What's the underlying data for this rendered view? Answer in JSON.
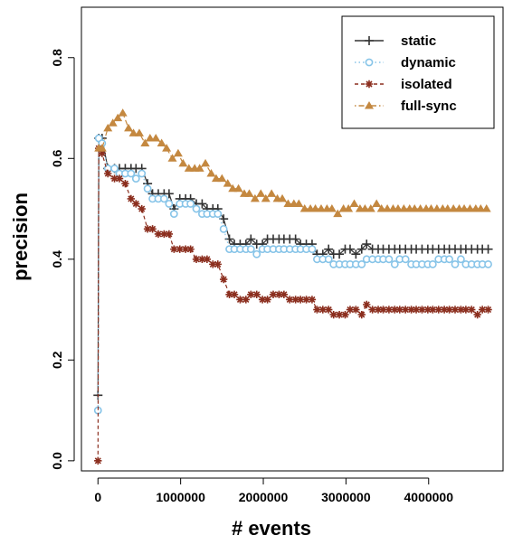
{
  "chart_data": {
    "type": "line",
    "xlabel": "# events",
    "ylabel": "precision",
    "xlim": [
      -200000,
      4900000
    ],
    "ylim": [
      -0.02,
      0.9
    ],
    "x_ticks": [
      0,
      1000000,
      2000000,
      3000000,
      4000000
    ],
    "x_tick_labels": [
      "0",
      "1000000",
      "2000000",
      "3000000",
      "4000000"
    ],
    "y_ticks": [
      0.0,
      0.2,
      0.4,
      0.6,
      0.8
    ],
    "y_tick_labels": [
      "0.0",
      "0.2",
      "0.4",
      "0.6",
      "0.8"
    ],
    "grid": false,
    "legend_position": "top-right",
    "series": [
      {
        "name": "static",
        "color": "#333333",
        "marker": "plus",
        "line_style": "solid",
        "points": [
          [
            0,
            0.13
          ],
          [
            10000,
            0.64
          ],
          [
            50000,
            0.64
          ],
          [
            120000,
            0.58
          ],
          [
            200000,
            0.58
          ],
          [
            260000,
            0.58
          ],
          [
            330000,
            0.58
          ],
          [
            400000,
            0.58
          ],
          [
            460000,
            0.58
          ],
          [
            530000,
            0.58
          ],
          [
            600000,
            0.55
          ],
          [
            660000,
            0.53
          ],
          [
            730000,
            0.53
          ],
          [
            800000,
            0.53
          ],
          [
            860000,
            0.53
          ],
          [
            920000,
            0.5
          ],
          [
            990000,
            0.52
          ],
          [
            1060000,
            0.52
          ],
          [
            1120000,
            0.52
          ],
          [
            1190000,
            0.51
          ],
          [
            1260000,
            0.51
          ],
          [
            1320000,
            0.5
          ],
          [
            1390000,
            0.5
          ],
          [
            1450000,
            0.5
          ],
          [
            1520000,
            0.48
          ],
          [
            1590000,
            0.44
          ],
          [
            1650000,
            0.43
          ],
          [
            1720000,
            0.43
          ],
          [
            1790000,
            0.43
          ],
          [
            1850000,
            0.44
          ],
          [
            1920000,
            0.43
          ],
          [
            1990000,
            0.43
          ],
          [
            2050000,
            0.44
          ],
          [
            2120000,
            0.44
          ],
          [
            2190000,
            0.44
          ],
          [
            2250000,
            0.44
          ],
          [
            2320000,
            0.44
          ],
          [
            2390000,
            0.44
          ],
          [
            2450000,
            0.43
          ],
          [
            2520000,
            0.43
          ],
          [
            2590000,
            0.43
          ],
          [
            2650000,
            0.41
          ],
          [
            2720000,
            0.41
          ],
          [
            2790000,
            0.42
          ],
          [
            2850000,
            0.41
          ],
          [
            2920000,
            0.41
          ],
          [
            2990000,
            0.42
          ],
          [
            3050000,
            0.42
          ],
          [
            3120000,
            0.41
          ],
          [
            3190000,
            0.42
          ],
          [
            3250000,
            0.43
          ],
          [
            3320000,
            0.42
          ],
          [
            3390000,
            0.42
          ],
          [
            3450000,
            0.42
          ],
          [
            3520000,
            0.42
          ],
          [
            3590000,
            0.42
          ],
          [
            3650000,
            0.42
          ],
          [
            3720000,
            0.42
          ],
          [
            3790000,
            0.42
          ],
          [
            3850000,
            0.42
          ],
          [
            3920000,
            0.42
          ],
          [
            3990000,
            0.42
          ],
          [
            4050000,
            0.42
          ],
          [
            4120000,
            0.42
          ],
          [
            4190000,
            0.42
          ],
          [
            4250000,
            0.42
          ],
          [
            4320000,
            0.42
          ],
          [
            4390000,
            0.42
          ],
          [
            4450000,
            0.42
          ],
          [
            4520000,
            0.42
          ],
          [
            4590000,
            0.42
          ],
          [
            4650000,
            0.42
          ],
          [
            4720000,
            0.42
          ]
        ]
      },
      {
        "name": "dynamic",
        "color": "#87c4e8",
        "marker": "circle",
        "line_style": "dotted",
        "points": [
          [
            0,
            0.1
          ],
          [
            10000,
            0.64
          ],
          [
            50000,
            0.63
          ],
          [
            120000,
            0.58
          ],
          [
            200000,
            0.58
          ],
          [
            260000,
            0.57
          ],
          [
            330000,
            0.57
          ],
          [
            400000,
            0.57
          ],
          [
            460000,
            0.56
          ],
          [
            530000,
            0.57
          ],
          [
            600000,
            0.54
          ],
          [
            660000,
            0.52
          ],
          [
            730000,
            0.52
          ],
          [
            800000,
            0.52
          ],
          [
            860000,
            0.51
          ],
          [
            920000,
            0.49
          ],
          [
            990000,
            0.51
          ],
          [
            1060000,
            0.51
          ],
          [
            1120000,
            0.51
          ],
          [
            1190000,
            0.5
          ],
          [
            1260000,
            0.49
          ],
          [
            1320000,
            0.49
          ],
          [
            1390000,
            0.49
          ],
          [
            1450000,
            0.49
          ],
          [
            1520000,
            0.46
          ],
          [
            1590000,
            0.42
          ],
          [
            1650000,
            0.42
          ],
          [
            1720000,
            0.42
          ],
          [
            1790000,
            0.42
          ],
          [
            1850000,
            0.42
          ],
          [
            1920000,
            0.41
          ],
          [
            1990000,
            0.42
          ],
          [
            2050000,
            0.42
          ],
          [
            2120000,
            0.42
          ],
          [
            2190000,
            0.42
          ],
          [
            2250000,
            0.42
          ],
          [
            2320000,
            0.42
          ],
          [
            2390000,
            0.42
          ],
          [
            2450000,
            0.42
          ],
          [
            2520000,
            0.42
          ],
          [
            2590000,
            0.42
          ],
          [
            2650000,
            0.4
          ],
          [
            2720000,
            0.4
          ],
          [
            2790000,
            0.4
          ],
          [
            2850000,
            0.39
          ],
          [
            2920000,
            0.39
          ],
          [
            2990000,
            0.39
          ],
          [
            3050000,
            0.39
          ],
          [
            3120000,
            0.39
          ],
          [
            3190000,
            0.39
          ],
          [
            3250000,
            0.4
          ],
          [
            3320000,
            0.4
          ],
          [
            3390000,
            0.4
          ],
          [
            3450000,
            0.4
          ],
          [
            3520000,
            0.4
          ],
          [
            3590000,
            0.39
          ],
          [
            3650000,
            0.4
          ],
          [
            3720000,
            0.4
          ],
          [
            3790000,
            0.39
          ],
          [
            3850000,
            0.39
          ],
          [
            3920000,
            0.39
          ],
          [
            3990000,
            0.39
          ],
          [
            4050000,
            0.39
          ],
          [
            4120000,
            0.4
          ],
          [
            4190000,
            0.4
          ],
          [
            4250000,
            0.4
          ],
          [
            4320000,
            0.39
          ],
          [
            4390000,
            0.4
          ],
          [
            4450000,
            0.39
          ],
          [
            4520000,
            0.39
          ],
          [
            4590000,
            0.39
          ],
          [
            4650000,
            0.39
          ],
          [
            4720000,
            0.39
          ]
        ]
      },
      {
        "name": "isolated",
        "color": "#8b2e1e",
        "marker": "asterisk",
        "line_style": "dashed",
        "points": [
          [
            0,
            0.0
          ],
          [
            10000,
            0.62
          ],
          [
            50000,
            0.61
          ],
          [
            120000,
            0.57
          ],
          [
            200000,
            0.56
          ],
          [
            260000,
            0.56
          ],
          [
            330000,
            0.55
          ],
          [
            400000,
            0.52
          ],
          [
            460000,
            0.51
          ],
          [
            530000,
            0.5
          ],
          [
            600000,
            0.46
          ],
          [
            660000,
            0.46
          ],
          [
            730000,
            0.45
          ],
          [
            800000,
            0.45
          ],
          [
            860000,
            0.45
          ],
          [
            920000,
            0.42
          ],
          [
            990000,
            0.42
          ],
          [
            1060000,
            0.42
          ],
          [
            1120000,
            0.42
          ],
          [
            1190000,
            0.4
          ],
          [
            1260000,
            0.4
          ],
          [
            1320000,
            0.4
          ],
          [
            1390000,
            0.39
          ],
          [
            1450000,
            0.39
          ],
          [
            1520000,
            0.36
          ],
          [
            1590000,
            0.33
          ],
          [
            1650000,
            0.33
          ],
          [
            1720000,
            0.32
          ],
          [
            1790000,
            0.32
          ],
          [
            1850000,
            0.33
          ],
          [
            1920000,
            0.33
          ],
          [
            1990000,
            0.32
          ],
          [
            2050000,
            0.32
          ],
          [
            2120000,
            0.33
          ],
          [
            2190000,
            0.33
          ],
          [
            2250000,
            0.33
          ],
          [
            2320000,
            0.32
          ],
          [
            2390000,
            0.32
          ],
          [
            2450000,
            0.32
          ],
          [
            2520000,
            0.32
          ],
          [
            2590000,
            0.32
          ],
          [
            2650000,
            0.3
          ],
          [
            2720000,
            0.3
          ],
          [
            2790000,
            0.3
          ],
          [
            2850000,
            0.29
          ],
          [
            2920000,
            0.29
          ],
          [
            2990000,
            0.29
          ],
          [
            3050000,
            0.3
          ],
          [
            3120000,
            0.3
          ],
          [
            3190000,
            0.29
          ],
          [
            3250000,
            0.31
          ],
          [
            3320000,
            0.3
          ],
          [
            3390000,
            0.3
          ],
          [
            3450000,
            0.3
          ],
          [
            3520000,
            0.3
          ],
          [
            3590000,
            0.3
          ],
          [
            3650000,
            0.3
          ],
          [
            3720000,
            0.3
          ],
          [
            3790000,
            0.3
          ],
          [
            3850000,
            0.3
          ],
          [
            3920000,
            0.3
          ],
          [
            3990000,
            0.3
          ],
          [
            4050000,
            0.3
          ],
          [
            4120000,
            0.3
          ],
          [
            4190000,
            0.3
          ],
          [
            4250000,
            0.3
          ],
          [
            4320000,
            0.3
          ],
          [
            4390000,
            0.3
          ],
          [
            4450000,
            0.3
          ],
          [
            4520000,
            0.3
          ],
          [
            4590000,
            0.29
          ],
          [
            4650000,
            0.3
          ],
          [
            4720000,
            0.3
          ]
        ]
      },
      {
        "name": "full-sync",
        "color": "#c48840",
        "marker": "triangle",
        "line_style": "dotdash",
        "points": [
          [
            10000,
            0.62
          ],
          [
            50000,
            0.62
          ],
          [
            120000,
            0.66
          ],
          [
            180000,
            0.67
          ],
          [
            240000,
            0.68
          ],
          [
            300000,
            0.69
          ],
          [
            370000,
            0.66
          ],
          [
            430000,
            0.65
          ],
          [
            500000,
            0.65
          ],
          [
            570000,
            0.63
          ],
          [
            630000,
            0.64
          ],
          [
            700000,
            0.64
          ],
          [
            770000,
            0.63
          ],
          [
            830000,
            0.62
          ],
          [
            900000,
            0.6
          ],
          [
            970000,
            0.61
          ],
          [
            1030000,
            0.59
          ],
          [
            1100000,
            0.58
          ],
          [
            1170000,
            0.58
          ],
          [
            1230000,
            0.58
          ],
          [
            1300000,
            0.59
          ],
          [
            1370000,
            0.57
          ],
          [
            1430000,
            0.56
          ],
          [
            1500000,
            0.56
          ],
          [
            1570000,
            0.55
          ],
          [
            1630000,
            0.54
          ],
          [
            1700000,
            0.54
          ],
          [
            1770000,
            0.53
          ],
          [
            1830000,
            0.53
          ],
          [
            1900000,
            0.52
          ],
          [
            1970000,
            0.53
          ],
          [
            2030000,
            0.52
          ],
          [
            2100000,
            0.53
          ],
          [
            2170000,
            0.52
          ],
          [
            2230000,
            0.52
          ],
          [
            2300000,
            0.51
          ],
          [
            2370000,
            0.51
          ],
          [
            2430000,
            0.51
          ],
          [
            2500000,
            0.5
          ],
          [
            2570000,
            0.5
          ],
          [
            2630000,
            0.5
          ],
          [
            2700000,
            0.5
          ],
          [
            2770000,
            0.5
          ],
          [
            2830000,
            0.5
          ],
          [
            2900000,
            0.49
          ],
          [
            2970000,
            0.5
          ],
          [
            3030000,
            0.5
          ],
          [
            3100000,
            0.51
          ],
          [
            3170000,
            0.5
          ],
          [
            3230000,
            0.5
          ],
          [
            3300000,
            0.5
          ],
          [
            3370000,
            0.51
          ],
          [
            3430000,
            0.5
          ],
          [
            3500000,
            0.5
          ],
          [
            3570000,
            0.5
          ],
          [
            3630000,
            0.5
          ],
          [
            3700000,
            0.5
          ],
          [
            3770000,
            0.5
          ],
          [
            3830000,
            0.5
          ],
          [
            3900000,
            0.5
          ],
          [
            3970000,
            0.5
          ],
          [
            4030000,
            0.5
          ],
          [
            4100000,
            0.5
          ],
          [
            4170000,
            0.5
          ],
          [
            4230000,
            0.5
          ],
          [
            4300000,
            0.5
          ],
          [
            4370000,
            0.5
          ],
          [
            4430000,
            0.5
          ],
          [
            4500000,
            0.5
          ],
          [
            4570000,
            0.5
          ],
          [
            4630000,
            0.5
          ],
          [
            4700000,
            0.5
          ]
        ]
      }
    ]
  }
}
